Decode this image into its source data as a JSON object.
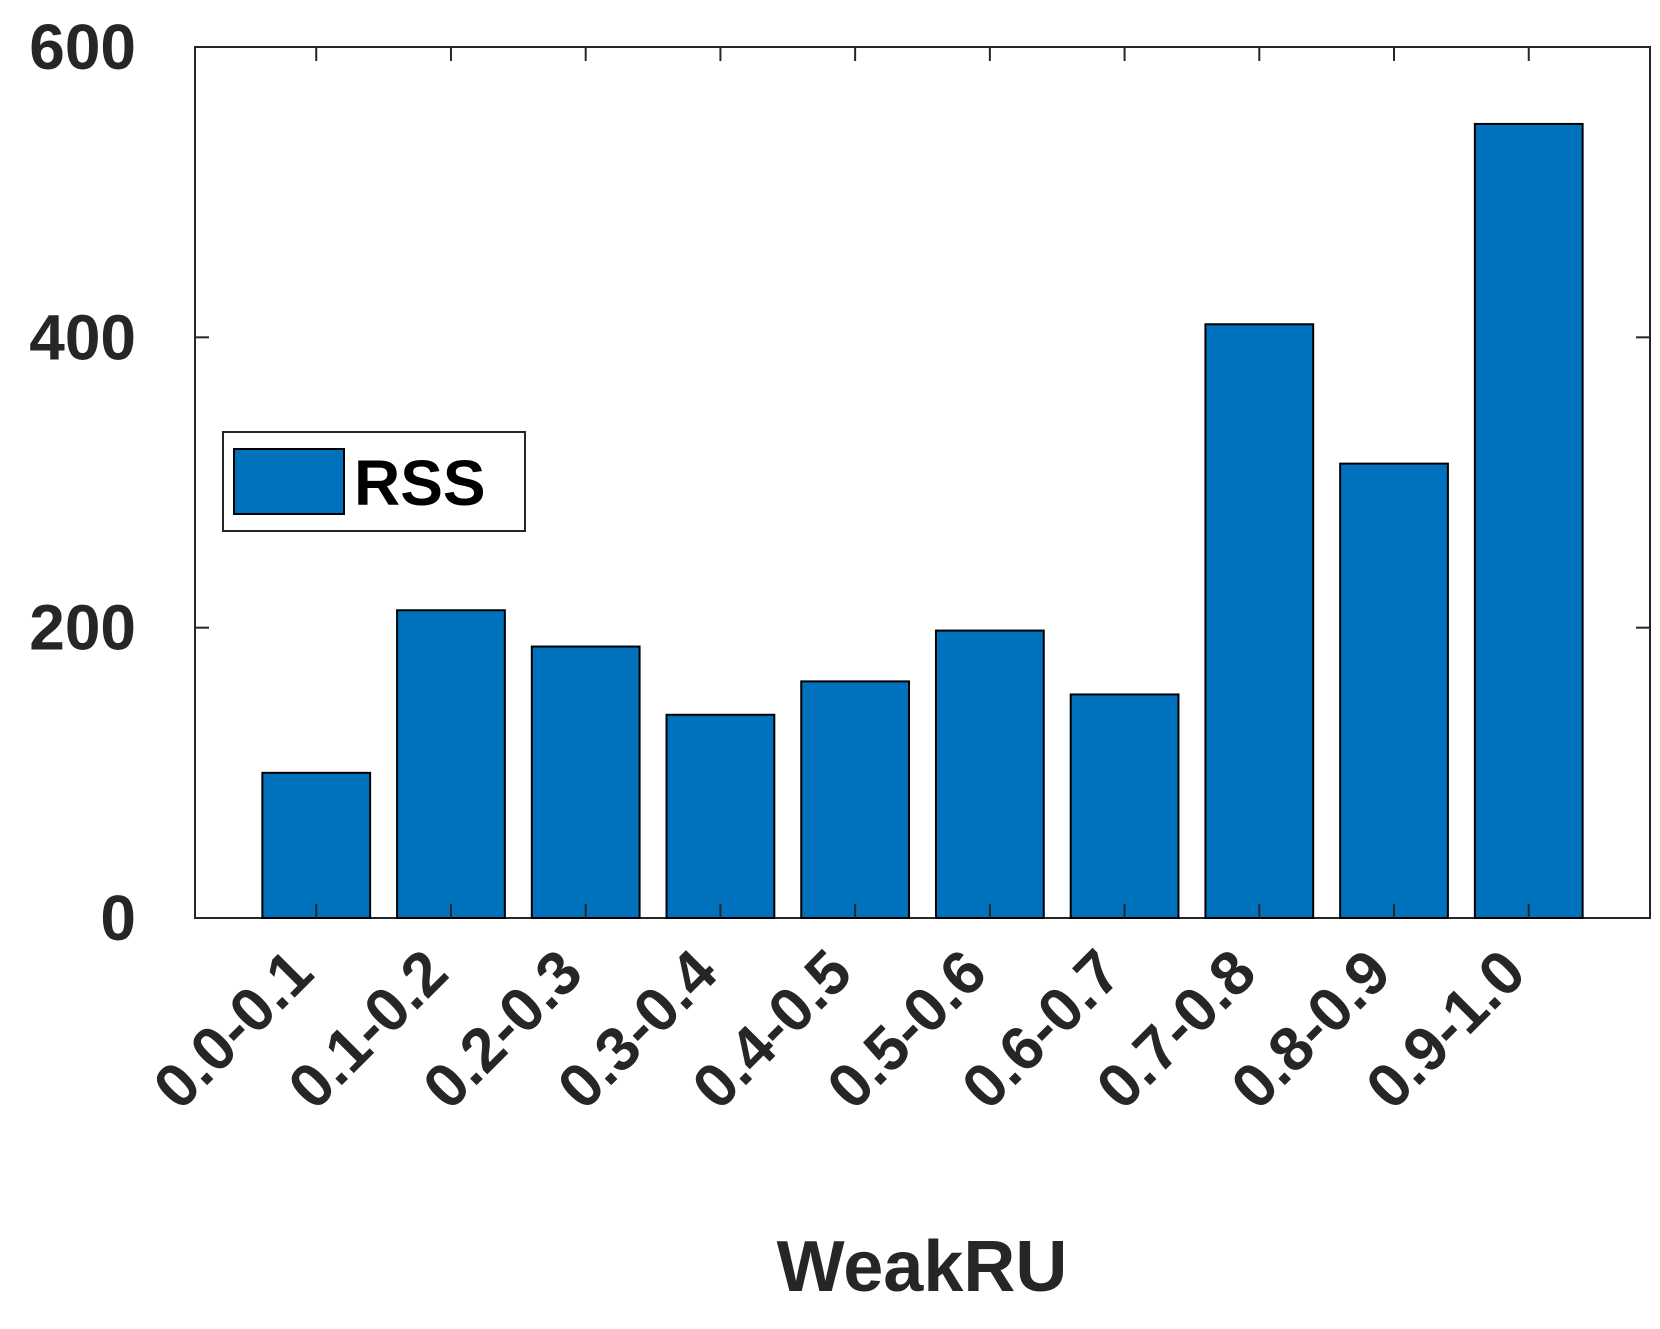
{
  "chart_data": {
    "type": "bar",
    "x_label": "WeakRU",
    "categories": [
      "0.0-0.1",
      "0.1-0.2",
      "0.2-0.3",
      "0.3-0.4",
      "0.4-0.5",
      "0.5-0.6",
      "0.6-0.7",
      "0.7-0.8",
      "0.8-0.9",
      "0.9-1.0"
    ],
    "series": [
      {
        "name": "RSS",
        "color": "#0072BD",
        "values": [
          100,
          212,
          187,
          140,
          163,
          198,
          154,
          409,
          313,
          547
        ]
      }
    ],
    "ylim": [
      0,
      600
    ],
    "yticks": [
      0,
      200,
      400,
      600
    ],
    "grid": false,
    "legend": "left"
  }
}
